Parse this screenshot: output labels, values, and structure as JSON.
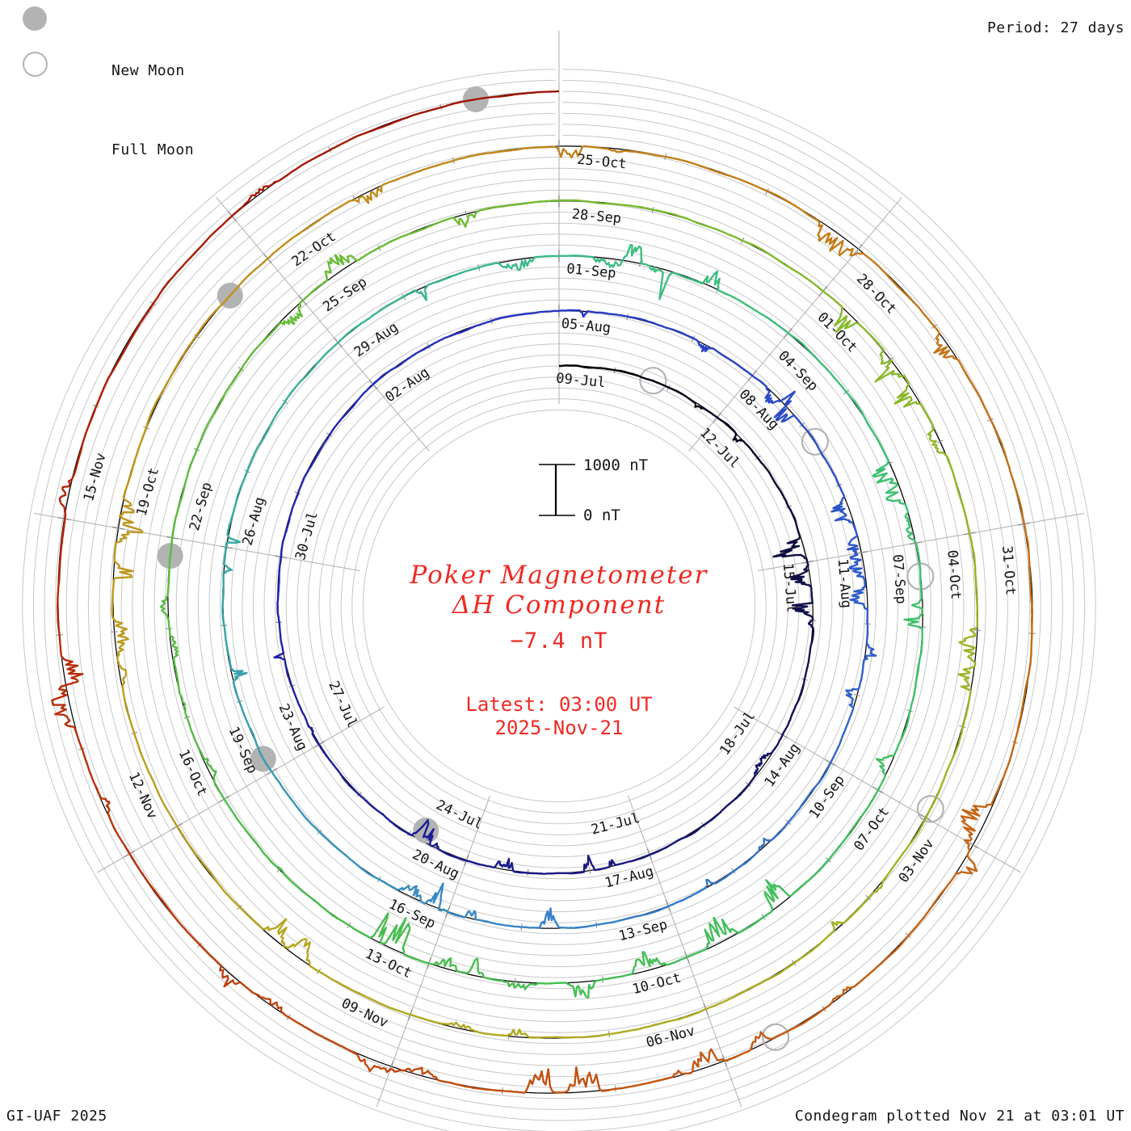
{
  "legend": {
    "new_moon_label": "New Moon",
    "full_moon_label": "Full Moon"
  },
  "header": {
    "period_label": "Period: 27 days"
  },
  "footer": {
    "credit": "GI-UAF 2025",
    "plotted": "Condegram plotted Nov 21 at 03:01 UT"
  },
  "center": {
    "title_line1": "Poker Magnetometer",
    "title_line2": "ΔH Component",
    "value": "−7.4 nT",
    "latest_line1": "Latest: 03:00 UT",
    "latest_line2": "2025-Nov-21"
  },
  "scale_bar": {
    "top_label": "1000 nT",
    "bottom_label": "0 nT",
    "span_nT": 1000
  },
  "chart_data": {
    "type": "line",
    "layout": "polar-spiral-condegram",
    "title": "Poker Magnetometer ΔH Component",
    "station": "Poker",
    "component": "ΔH",
    "latest_value_nT": -7.4,
    "latest_time": "2025-Nov-21 03:00 UT",
    "plotted_time": "Nov 21 at 03:01 UT",
    "period_days": 27,
    "days_per_label": 3,
    "sub_rings_per_period": 5,
    "revolutions": 5,
    "start_date_top": "09-Jul",
    "end_date_top": "21-Nov",
    "ring_start_dates": [
      "09-Jul",
      "05-Aug",
      "01-Sep",
      "28-Sep",
      "25-Oct"
    ],
    "date_labels": [
      "09-Jul",
      "12-Jul",
      "15-Jul",
      "18-Jul",
      "21-Jul",
      "24-Jul",
      "27-Jul",
      "30-Jul",
      "02-Aug",
      "05-Aug",
      "08-Aug",
      "11-Aug",
      "14-Aug",
      "17-Aug",
      "20-Aug",
      "23-Aug",
      "26-Aug",
      "29-Aug",
      "01-Sep",
      "04-Sep",
      "07-Sep",
      "10-Sep",
      "13-Sep",
      "16-Sep",
      "19-Sep",
      "22-Sep",
      "25-Sep",
      "28-Sep",
      "01-Oct",
      "04-Oct",
      "07-Oct",
      "10-Oct",
      "13-Oct",
      "16-Oct",
      "19-Oct",
      "22-Oct",
      "25-Oct",
      "28-Oct",
      "31-Oct",
      "03-Nov",
      "06-Nov",
      "09-Nov",
      "12-Nov",
      "15-Nov"
    ],
    "moons": {
      "new": [
        {
          "date": "24-Jul",
          "day": 15.8
        },
        {
          "date": "23-Aug",
          "day": 45.2
        },
        {
          "date": "21-Sep",
          "day": 74.8
        },
        {
          "date": "21-Oct",
          "day": 104.5
        },
        {
          "date": "20-Nov",
          "day": 134.3
        }
      ],
      "full": [
        {
          "date": "10-Jul",
          "day": 1.7
        },
        {
          "date": "09-Aug",
          "day": 31.3
        },
        {
          "date": "07-Sep",
          "day": 60.4
        },
        {
          "date": "07-Oct",
          "day": 89.9
        },
        {
          "date": "05-Nov",
          "day": 119.5
        }
      ]
    },
    "palette_stops": [
      [
        0,
        "#000000"
      ],
      [
        7,
        "#10104e"
      ],
      [
        14,
        "#1a1a8a"
      ],
      [
        21,
        "#2222ae"
      ],
      [
        27,
        "#2737c4"
      ],
      [
        34,
        "#2e5ecb"
      ],
      [
        41,
        "#3884c9"
      ],
      [
        48,
        "#35a9a2"
      ],
      [
        55,
        "#3cbd80"
      ],
      [
        62,
        "#3fc065"
      ],
      [
        69,
        "#47bd4f"
      ],
      [
        76,
        "#5cbc3b"
      ],
      [
        83,
        "#7eba2c"
      ],
      [
        90,
        "#a2b323"
      ],
      [
        97,
        "#b6a51f"
      ],
      [
        104,
        "#c0921d"
      ],
      [
        111,
        "#c47917"
      ],
      [
        118,
        "#c66113"
      ],
      [
        124,
        "#c1430d"
      ],
      [
        129,
        "#b52408"
      ],
      [
        135,
        "#9e1205"
      ]
    ],
    "activity_profile": [
      [
        2.3,
        4.2,
        0.5
      ],
      [
        4.5,
        9.8,
        0.8
      ],
      [
        11.5,
        13.0,
        0.4
      ],
      [
        13.5,
        16.5,
        0.6
      ],
      [
        17.5,
        19.5,
        0.4
      ],
      [
        27.3,
        31.0,
        0.85
      ],
      [
        31.5,
        35.0,
        0.8
      ],
      [
        36.5,
        38.5,
        0.45
      ],
      [
        40.0,
        43.5,
        0.65
      ],
      [
        45.5,
        48.5,
        0.4
      ],
      [
        50.0,
        53.5,
        0.6
      ],
      [
        54.0,
        57.0,
        0.8
      ],
      [
        58.5,
        63.5,
        0.75
      ],
      [
        64.5,
        69.8,
        1.0
      ],
      [
        70.5,
        75.0,
        0.55
      ],
      [
        77.5,
        80.5,
        0.45
      ],
      [
        83.3,
        86.2,
        0.95
      ],
      [
        87.5,
        91.5,
        0.55
      ],
      [
        94.5,
        98.0,
        0.75
      ],
      [
        99.5,
        103.2,
        0.7
      ],
      [
        105.5,
        108.5,
        0.55
      ],
      [
        109.5,
        112.5,
        0.5
      ],
      [
        116.5,
        121.5,
        0.95
      ],
      [
        121.5,
        124.8,
        0.85
      ],
      [
        125.3,
        127.6,
        0.7
      ],
      [
        128.2,
        129.8,
        0.3
      ],
      [
        131.0,
        134.0,
        0.12
      ]
    ],
    "colors": {
      "grid_circle": "#c7c7c7",
      "radial_line": "#b5b5b5",
      "baseline": "#000000",
      "tick": "#8f8f8f",
      "moon": "#b3b3b3",
      "accent_text": "#ee2a22",
      "label_text": "#141414"
    }
  }
}
